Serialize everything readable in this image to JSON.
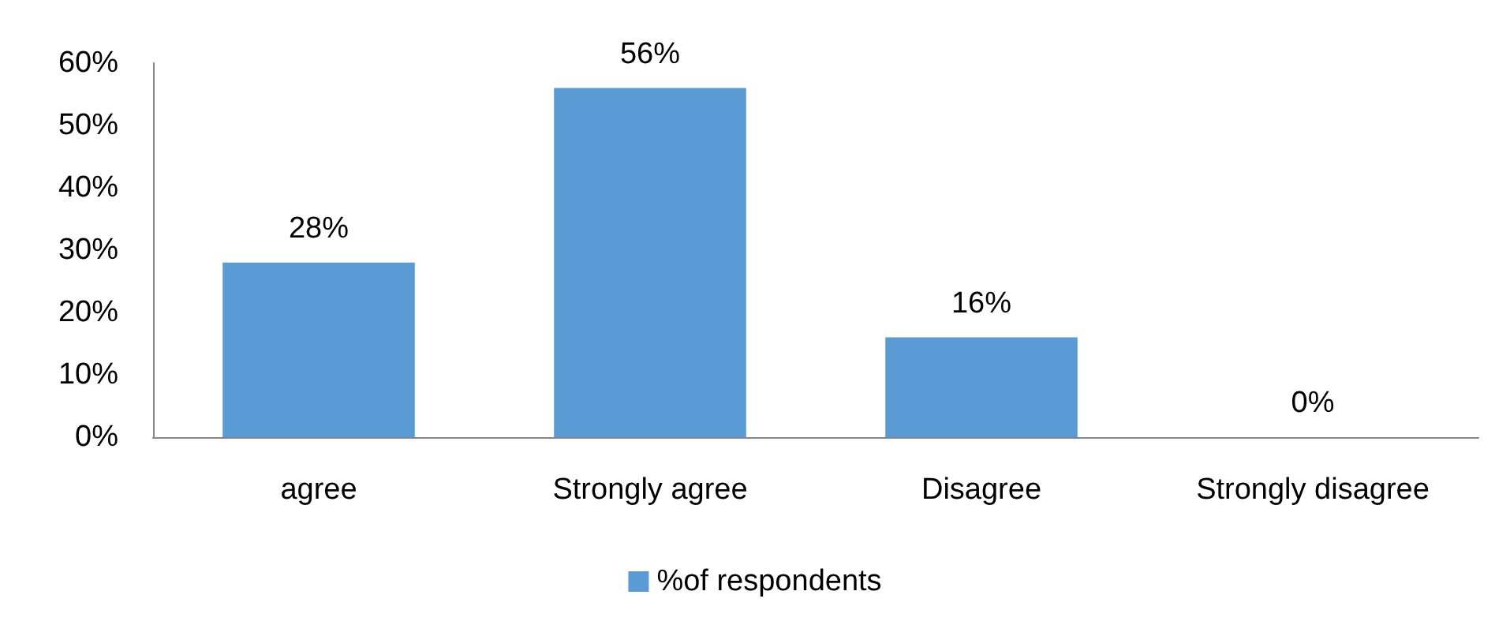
{
  "chart_data": {
    "type": "bar",
    "categories": [
      "agree",
      "Strongly agree",
      "Disagree",
      "Strongly disagree"
    ],
    "series": [
      {
        "name": "%of respondents",
        "color": "#5b9bd5",
        "values": [
          28,
          56,
          16,
          0
        ],
        "value_labels": [
          "28%",
          "56%",
          "16%",
          "0%"
        ]
      }
    ],
    "ylim": [
      0,
      60
    ],
    "yticks": [
      {
        "value": 0,
        "label": "0%"
      },
      {
        "value": 10,
        "label": "10%"
      },
      {
        "value": 20,
        "label": "20%"
      },
      {
        "value": 30,
        "label": "30%"
      },
      {
        "value": 40,
        "label": "40%"
      },
      {
        "value": 50,
        "label": "50%"
      },
      {
        "value": 60,
        "label": "60%"
      }
    ],
    "grid": false,
    "legend": "bottom"
  }
}
